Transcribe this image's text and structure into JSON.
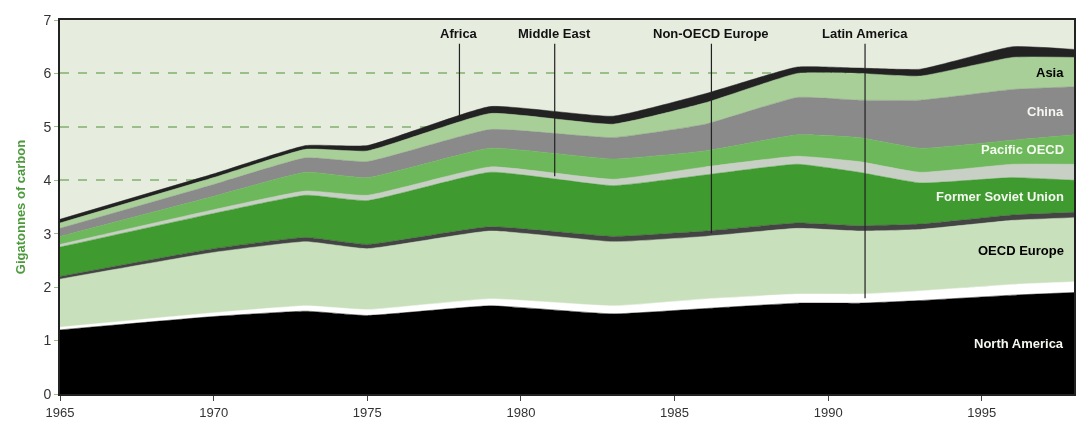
{
  "chart_data": {
    "type": "area",
    "stacked": true,
    "ylabel": "Gigatonnes of carbon",
    "x": [
      1965,
      1970,
      1973,
      1975,
      1979,
      1983,
      1986,
      1989,
      1991,
      1993,
      1996,
      1998
    ],
    "xlim": [
      1965,
      1998
    ],
    "xticks": [
      1965,
      1970,
      1975,
      1980,
      1985,
      1990,
      1995
    ],
    "ylim": [
      0,
      7
    ],
    "yticks": [
      0,
      1,
      2,
      3,
      4,
      5,
      6,
      7
    ],
    "grid": "y",
    "legend": false,
    "series": [
      {
        "name": "North America",
        "color": "#000000",
        "values": [
          1.2,
          1.45,
          1.55,
          1.47,
          1.65,
          1.5,
          1.6,
          1.7,
          1.7,
          1.75,
          1.85,
          1.9
        ]
      },
      {
        "name": "Latin America",
        "color": "#ffffff",
        "values": [
          0.05,
          0.07,
          0.1,
          0.11,
          0.13,
          0.15,
          0.18,
          0.17,
          0.17,
          0.18,
          0.2,
          0.2
        ]
      },
      {
        "name": "OECD Europe",
        "color": "#c8e0bc",
        "values": [
          0.9,
          1.13,
          1.2,
          1.14,
          1.27,
          1.2,
          1.17,
          1.23,
          1.18,
          1.15,
          1.2,
          1.2
        ]
      },
      {
        "name": "Non-OECD Europe",
        "color": "#444444",
        "values": [
          0.05,
          0.07,
          0.08,
          0.08,
          0.08,
          0.1,
          0.1,
          0.1,
          0.1,
          0.1,
          0.1,
          0.1
        ]
      },
      {
        "name": "Former Soviet Union",
        "color": "#3f9a2f",
        "values": [
          0.55,
          0.66,
          0.79,
          0.82,
          1.02,
          0.95,
          1.05,
          1.1,
          1.0,
          0.77,
          0.7,
          0.6
        ]
      },
      {
        "name": "Middle East",
        "color": "#c8cfc4",
        "values": [
          0.05,
          0.07,
          0.08,
          0.1,
          0.1,
          0.12,
          0.15,
          0.15,
          0.2,
          0.2,
          0.25,
          0.3
        ]
      },
      {
        "name": "Pacific OECD",
        "color": "#6cb85a",
        "values": [
          0.15,
          0.25,
          0.35,
          0.33,
          0.35,
          0.38,
          0.3,
          0.4,
          0.45,
          0.45,
          0.45,
          0.55
        ]
      },
      {
        "name": "China",
        "color": "#8a8a8a",
        "values": [
          0.15,
          0.22,
          0.27,
          0.3,
          0.35,
          0.4,
          0.5,
          0.7,
          0.7,
          0.9,
          0.95,
          0.9
        ]
      },
      {
        "name": "Asia",
        "color": "#a8cf98",
        "values": [
          0.1,
          0.13,
          0.16,
          0.2,
          0.3,
          0.25,
          0.4,
          0.45,
          0.5,
          0.45,
          0.6,
          0.55
        ]
      },
      {
        "name": "Africa",
        "color": "#222222",
        "values": [
          0.07,
          0.07,
          0.07,
          0.1,
          0.13,
          0.15,
          0.17,
          0.12,
          0.1,
          0.13,
          0.2,
          0.15
        ]
      }
    ]
  }
}
